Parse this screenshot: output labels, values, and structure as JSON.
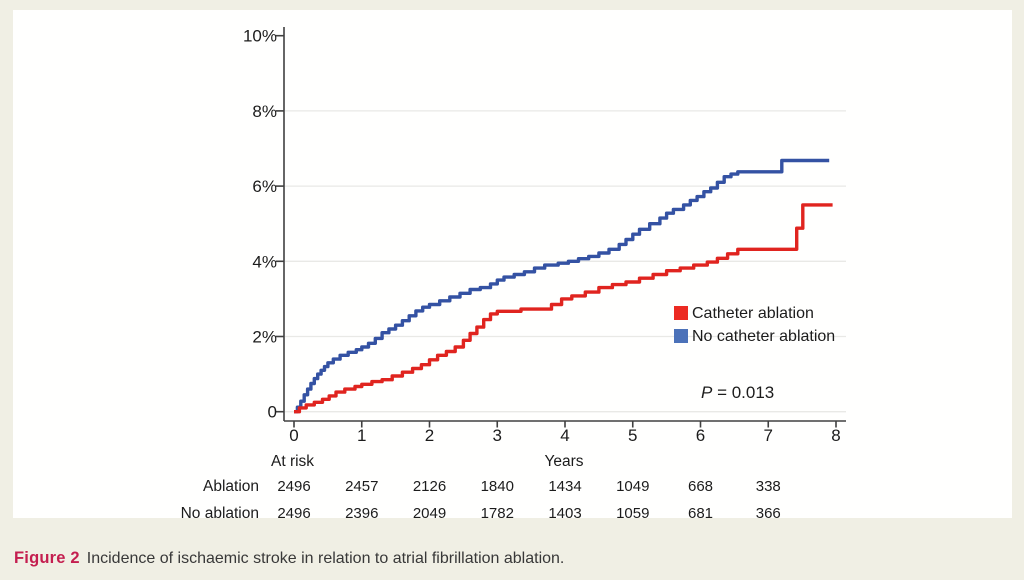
{
  "figure": {
    "caption_label": "Figure 2",
    "caption_text": "Incidence of ischaemic stroke in relation to atrial fibrillation ablation."
  },
  "chart_data": {
    "type": "line",
    "subtype": "kaplan-meier-step-cumulative-incidence",
    "title": "",
    "xlabel": "Years",
    "ylabel": "",
    "xlim": [
      0,
      8
    ],
    "ylim": [
      0,
      10
    ],
    "xticks": [
      "0",
      "1",
      "2",
      "3",
      "4",
      "5",
      "6",
      "7",
      "8"
    ],
    "xtick_values": [
      0,
      1,
      2,
      3,
      4,
      5,
      6,
      7,
      8
    ],
    "ytick_labels": [
      "0",
      "2%",
      "4%",
      "6%",
      "8%",
      "10%"
    ],
    "ytick_values": [
      0,
      2,
      4,
      6,
      8,
      10
    ],
    "gridline_values": [
      0,
      2,
      4,
      6,
      8
    ],
    "grid": true,
    "legend_position": "right-middle",
    "p_label": "P",
    "p_rest": " = 0.013",
    "legend": {
      "entries": [
        {
          "label": "Catheter ablation",
          "swatch_color": "#ec2a22"
        },
        {
          "label": "No catheter ablation",
          "swatch_color": "#4c72b9"
        }
      ]
    },
    "series": [
      {
        "name": "No catheter ablation",
        "color": "#3452a3",
        "points": [
          [
            0,
            0
          ],
          [
            0.05,
            0.12
          ],
          [
            0.1,
            0.28
          ],
          [
            0.15,
            0.45
          ],
          [
            0.2,
            0.6
          ],
          [
            0.25,
            0.75
          ],
          [
            0.3,
            0.88
          ],
          [
            0.35,
            1.0
          ],
          [
            0.4,
            1.1
          ],
          [
            0.45,
            1.2
          ],
          [
            0.5,
            1.3
          ],
          [
            0.58,
            1.4
          ],
          [
            0.68,
            1.5
          ],
          [
            0.8,
            1.58
          ],
          [
            0.92,
            1.65
          ],
          [
            1.0,
            1.72
          ],
          [
            1.1,
            1.82
          ],
          [
            1.2,
            1.95
          ],
          [
            1.3,
            2.1
          ],
          [
            1.4,
            2.2
          ],
          [
            1.5,
            2.3
          ],
          [
            1.6,
            2.42
          ],
          [
            1.7,
            2.55
          ],
          [
            1.8,
            2.68
          ],
          [
            1.9,
            2.78
          ],
          [
            2.0,
            2.85
          ],
          [
            2.15,
            2.95
          ],
          [
            2.3,
            3.05
          ],
          [
            2.45,
            3.15
          ],
          [
            2.6,
            3.25
          ],
          [
            2.75,
            3.3
          ],
          [
            2.9,
            3.4
          ],
          [
            3.0,
            3.5
          ],
          [
            3.1,
            3.58
          ],
          [
            3.25,
            3.65
          ],
          [
            3.4,
            3.72
          ],
          [
            3.55,
            3.82
          ],
          [
            3.7,
            3.9
          ],
          [
            3.9,
            3.95
          ],
          [
            4.05,
            4.0
          ],
          [
            4.2,
            4.07
          ],
          [
            4.35,
            4.13
          ],
          [
            4.5,
            4.22
          ],
          [
            4.65,
            4.32
          ],
          [
            4.8,
            4.45
          ],
          [
            4.9,
            4.58
          ],
          [
            5.0,
            4.72
          ],
          [
            5.1,
            4.85
          ],
          [
            5.25,
            5.0
          ],
          [
            5.4,
            5.15
          ],
          [
            5.5,
            5.28
          ],
          [
            5.6,
            5.38
          ],
          [
            5.75,
            5.5
          ],
          [
            5.85,
            5.62
          ],
          [
            5.95,
            5.72
          ],
          [
            6.05,
            5.85
          ],
          [
            6.15,
            5.95
          ],
          [
            6.25,
            6.1
          ],
          [
            6.35,
            6.25
          ],
          [
            6.45,
            6.32
          ],
          [
            6.55,
            6.38
          ],
          [
            7.2,
            6.68
          ],
          [
            7.9,
            6.68
          ]
        ]
      },
      {
        "name": "Catheter ablation",
        "color": "#e0241f",
        "points": [
          [
            0,
            0
          ],
          [
            0.08,
            0.1
          ],
          [
            0.18,
            0.18
          ],
          [
            0.3,
            0.25
          ],
          [
            0.42,
            0.33
          ],
          [
            0.52,
            0.42
          ],
          [
            0.62,
            0.52
          ],
          [
            0.75,
            0.6
          ],
          [
            0.9,
            0.67
          ],
          [
            1.0,
            0.73
          ],
          [
            1.15,
            0.8
          ],
          [
            1.3,
            0.85
          ],
          [
            1.45,
            0.95
          ],
          [
            1.6,
            1.05
          ],
          [
            1.75,
            1.15
          ],
          [
            1.88,
            1.25
          ],
          [
            2.0,
            1.38
          ],
          [
            2.12,
            1.5
          ],
          [
            2.25,
            1.6
          ],
          [
            2.38,
            1.72
          ],
          [
            2.5,
            1.9
          ],
          [
            2.6,
            2.08
          ],
          [
            2.7,
            2.25
          ],
          [
            2.8,
            2.45
          ],
          [
            2.9,
            2.6
          ],
          [
            3.0,
            2.67
          ],
          [
            3.35,
            2.73
          ],
          [
            3.8,
            2.85
          ],
          [
            3.95,
            3.0
          ],
          [
            4.1,
            3.08
          ],
          [
            4.3,
            3.18
          ],
          [
            4.5,
            3.3
          ],
          [
            4.7,
            3.38
          ],
          [
            4.9,
            3.45
          ],
          [
            5.1,
            3.55
          ],
          [
            5.3,
            3.65
          ],
          [
            5.5,
            3.75
          ],
          [
            5.7,
            3.82
          ],
          [
            5.9,
            3.9
          ],
          [
            6.1,
            3.98
          ],
          [
            6.25,
            4.08
          ],
          [
            6.4,
            4.2
          ],
          [
            6.55,
            4.32
          ],
          [
            7.42,
            4.88
          ],
          [
            7.51,
            5.5
          ],
          [
            7.95,
            5.5
          ]
        ]
      }
    ],
    "at_risk": {
      "header": "At risk",
      "axis_label": "Years",
      "rows": [
        {
          "label": "Ablation",
          "values": [
            "2496",
            "2457",
            "2126",
            "1840",
            "1434",
            "1049",
            "668",
            "338"
          ]
        },
        {
          "label": "No ablation",
          "values": [
            "2496",
            "2396",
            "2049",
            "1782",
            "1403",
            "1059",
            "681",
            "366"
          ]
        }
      ]
    },
    "colors": {
      "background": "#f0efe4",
      "panel": "#fffffe",
      "axis": "#404040",
      "grid": "#e9e9e6",
      "text": "#1c1c1c"
    }
  }
}
